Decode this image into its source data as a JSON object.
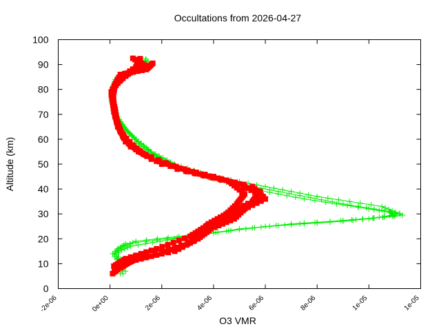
{
  "chart_data": {
    "type": "scatter",
    "title": "Occultations from 2026-04-27",
    "xlabel": "O3 VMR",
    "ylabel": "Altitude (km)",
    "xlim": [
      -2e-06,
      1.2e-05
    ],
    "ylim": [
      0,
      100
    ],
    "x_ticks": [
      {
        "value": -2e-06,
        "label": "-2e-06"
      },
      {
        "value": 0,
        "label": "0e+00"
      },
      {
        "value": 2e-06,
        "label": "2e-06"
      },
      {
        "value": 4e-06,
        "label": "4e-06"
      },
      {
        "value": 6e-06,
        "label": "6e-06"
      },
      {
        "value": 8e-06,
        "label": "8e-06"
      },
      {
        "value": 1e-05,
        "label": "1e-05"
      },
      {
        "value": 1.2e-05,
        "label": "1e-05"
      }
    ],
    "y_ticks": [
      {
        "value": 0,
        "label": "0"
      },
      {
        "value": 10,
        "label": "10"
      },
      {
        "value": 20,
        "label": "20"
      },
      {
        "value": 30,
        "label": "30"
      },
      {
        "value": 40,
        "label": "40"
      },
      {
        "value": 50,
        "label": "50"
      },
      {
        "value": 60,
        "label": "60"
      },
      {
        "value": 70,
        "label": "70"
      },
      {
        "value": 80,
        "label": "80"
      },
      {
        "value": 90,
        "label": "90"
      },
      {
        "value": 100,
        "label": "100"
      }
    ],
    "grid": false,
    "series": [
      {
        "color": "#00ee00",
        "marker": "plus",
        "profiles": [
          [
            [
              5e-07,
              6
            ],
            [
              2e-07,
              15
            ],
            [
              6e-07,
              18
            ],
            [
              3e-06,
              21
            ],
            [
              6e-06,
              25
            ],
            [
              9e-06,
              27
            ],
            [
              1.13e-05,
              29.5
            ],
            [
              1.05e-05,
              33
            ],
            [
              8e-06,
              37
            ],
            [
              6e-06,
              41
            ],
            [
              4e-06,
              45
            ],
            [
              2.5e-06,
              50
            ],
            [
              1.6e-06,
              55
            ],
            [
              1e-06,
              60
            ],
            [
              5e-07,
              65
            ],
            [
              2e-07,
              70
            ],
            [
              5e-08,
              75
            ],
            [
              5e-08,
              80
            ],
            [
              3e-07,
              85
            ],
            [
              1.2e-06,
              88
            ],
            [
              1.5e-06,
              92
            ]
          ],
          [
            [
              4e-07,
              6
            ],
            [
              3e-07,
              16
            ],
            [
              1e-06,
              19
            ],
            [
              3.5e-06,
              22
            ],
            [
              7e-06,
              26
            ],
            [
              1e-05,
              28
            ],
            [
              1.12e-05,
              30
            ],
            [
              1e-05,
              32
            ],
            [
              7.5e-06,
              36
            ],
            [
              5.5e-06,
              40
            ],
            [
              4e-06,
              44
            ],
            [
              2.8e-06,
              48
            ],
            [
              1.8e-06,
              53
            ],
            [
              1.1e-06,
              59
            ],
            [
              6e-07,
              64
            ],
            [
              2.5e-07,
              70
            ],
            [
              1e-07,
              76
            ],
            [
              1e-07,
              81
            ],
            [
              4e-07,
              86
            ],
            [
              1.3e-06,
              89
            ],
            [
              1.4e-06,
              93
            ]
          ],
          [
            [
              6e-07,
              7
            ],
            [
              1e-07,
              14
            ],
            [
              8e-07,
              17
            ],
            [
              2.5e-06,
              20
            ],
            [
              5e-06,
              24
            ],
            [
              8.5e-06,
              27
            ],
            [
              1.1e-05,
              29
            ],
            [
              1.08e-05,
              31
            ],
            [
              9e-06,
              34
            ],
            [
              6.5e-06,
              39
            ],
            [
              4.5e-06,
              43
            ],
            [
              3e-06,
              47
            ],
            [
              2e-06,
              52
            ],
            [
              1.2e-06,
              57
            ],
            [
              7e-07,
              63
            ],
            [
              3e-07,
              68
            ],
            [
              1e-07,
              74
            ],
            [
              5e-08,
              79
            ],
            [
              2e-07,
              84
            ],
            [
              1e-06,
              88
            ],
            [
              1.3e-06,
              91
            ]
          ]
        ]
      },
      {
        "color": "#ff0000",
        "marker": "square",
        "profiles": [
          [
            [
              1e-07,
              6
            ],
            [
              5e-07,
              10
            ],
            [
              1.5e-06,
              13
            ],
            [
              3e-06,
              18
            ],
            [
              3.5e-06,
              22
            ],
            [
              3.8e-06,
              26
            ],
            [
              4.5e-06,
              30
            ],
            [
              5.5e-06,
              35
            ],
            [
              5.8e-06,
              39
            ],
            [
              4e-06,
              45
            ],
            [
              2e-06,
              50
            ],
            [
              8e-07,
              57
            ],
            [
              3e-07,
              65
            ],
            [
              2e-07,
              72
            ],
            [
              5e-08,
              78
            ],
            [
              3e-07,
              84
            ],
            [
              1e-06,
              89
            ],
            [
              1.2e-06,
              93
            ]
          ],
          [
            [
              2e-07,
              7
            ],
            [
              8e-07,
              11
            ],
            [
              2e-06,
              14
            ],
            [
              3.2e-06,
              19
            ],
            [
              3.6e-06,
              23
            ],
            [
              4.2e-06,
              27
            ],
            [
              5e-06,
              31
            ],
            [
              6e-06,
              36
            ],
            [
              5.5e-06,
              41
            ],
            [
              3.5e-06,
              46
            ],
            [
              1.6e-06,
              52
            ],
            [
              6e-07,
              59
            ],
            [
              2.5e-07,
              67
            ],
            [
              1.5e-07,
              74
            ],
            [
              1e-07,
              80
            ],
            [
              5e-07,
              85
            ],
            [
              1.3e-06,
              90
            ],
            [
              8e-07,
              93
            ]
          ],
          [
            [
              3e-07,
              8
            ],
            [
              1e-06,
              12
            ],
            [
              2.5e-06,
              15
            ],
            [
              3.4e-06,
              20
            ],
            [
              3.9e-06,
              24
            ],
            [
              4.8e-06,
              28
            ],
            [
              5.3e-06,
              33
            ],
            [
              5.9e-06,
              37
            ],
            [
              5e-06,
              42
            ],
            [
              3e-06,
              47
            ],
            [
              1.3e-06,
              54
            ],
            [
              5e-07,
              61
            ],
            [
              2e-07,
              69
            ],
            [
              1e-07,
              76
            ],
            [
              2e-07,
              82
            ],
            [
              8e-07,
              87
            ],
            [
              1.6e-06,
              90
            ]
          ],
          [
            [
              1.5e-07,
              9
            ],
            [
              6e-07,
              12
            ],
            [
              1.8e-06,
              16
            ],
            [
              3.1e-06,
              21
            ],
            [
              3.7e-06,
              25
            ],
            [
              4.4e-06,
              29
            ],
            [
              4.9e-06,
              34
            ],
            [
              5.2e-06,
              38
            ],
            [
              4.6e-06,
              43
            ],
            [
              2.6e-06,
              48
            ],
            [
              1.1e-06,
              55
            ],
            [
              4e-07,
              63
            ],
            [
              1.5e-07,
              71
            ],
            [
              5e-08,
              79
            ],
            [
              4e-07,
              86
            ],
            [
              1.4e-06,
              88
            ],
            [
              1.7e-06,
              91
            ]
          ]
        ]
      }
    ]
  }
}
